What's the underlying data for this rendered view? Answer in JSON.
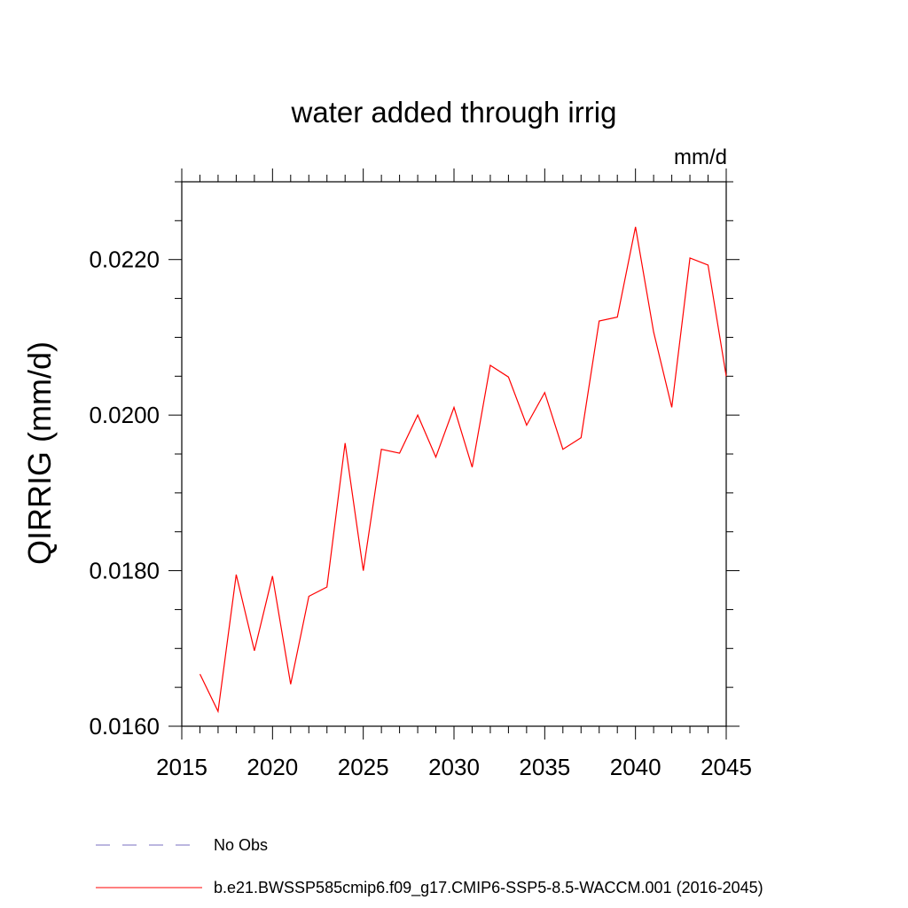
{
  "chart_data": {
    "type": "line",
    "title": "water added through irrig",
    "units": "mm/d",
    "ylabel": "QIRRIG  (mm/d)",
    "xlabel": "",
    "xlim": [
      2015,
      2045
    ],
    "ylim": [
      0.016,
      0.023
    ],
    "xticks": [
      2015,
      2020,
      2025,
      2030,
      2035,
      2040,
      2045
    ],
    "yticks": [
      0.016,
      0.018,
      0.02,
      0.022
    ],
    "ytick_labels": [
      "0.0160",
      "0.0180",
      "0.0200",
      "0.0220"
    ],
    "grid": false,
    "series": [
      {
        "name": "b.e21.BWSSP585cmip6.f09_g17.CMIP6-SSP5-8.5-WACCM.001 (2016-2045)",
        "color": "#ff0000",
        "style": "solid",
        "x": [
          2016,
          2017,
          2018,
          2019,
          2020,
          2021,
          2022,
          2023,
          2024,
          2025,
          2026,
          2027,
          2028,
          2029,
          2030,
          2031,
          2032,
          2033,
          2034,
          2035,
          2036,
          2037,
          2038,
          2039,
          2040,
          2041,
          2042,
          2043,
          2044,
          2045
        ],
        "values": [
          0.01667,
          0.01619,
          0.01795,
          0.01697,
          0.01793,
          0.01654,
          0.01767,
          0.01779,
          0.01964,
          0.018,
          0.01956,
          0.01951,
          0.02,
          0.01946,
          0.0201,
          0.01933,
          0.02064,
          0.02049,
          0.01987,
          0.02029,
          0.01956,
          0.01971,
          0.02121,
          0.02126,
          0.02242,
          0.02107,
          0.0201,
          0.02202,
          0.02193,
          0.0205
        ]
      }
    ],
    "legend": [
      {
        "label": "No Obs",
        "color": "#7a6fc0",
        "style": "dashed"
      },
      {
        "label": "b.e21.BWSSP585cmip6.f09_g17.CMIP6-SSP5-8.5-WACCM.001 (2016-2045)",
        "color": "#ff0000",
        "style": "solid"
      }
    ]
  }
}
